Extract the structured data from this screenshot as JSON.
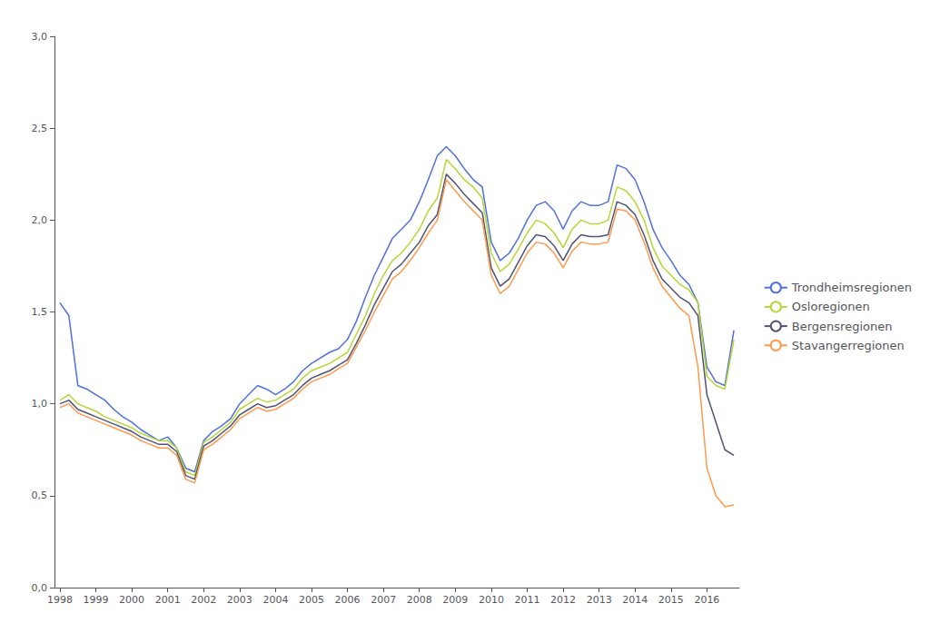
{
  "chart_data": {
    "type": "line",
    "x": [
      1998,
      1998.25,
      1998.5,
      1998.75,
      1999,
      1999.25,
      1999.5,
      1999.75,
      2000,
      2000.25,
      2000.5,
      2000.75,
      2001,
      2001.25,
      2001.5,
      2001.75,
      2002,
      2002.25,
      2002.5,
      2002.75,
      2003,
      2003.25,
      2003.5,
      2003.75,
      2004,
      2004.25,
      2004.5,
      2004.75,
      2005,
      2005.25,
      2005.5,
      2005.75,
      2006,
      2006.25,
      2006.5,
      2006.75,
      2007,
      2007.25,
      2007.5,
      2007.75,
      2008,
      2008.25,
      2008.5,
      2008.75,
      2009,
      2009.25,
      2009.5,
      2009.75,
      2010,
      2010.25,
      2010.5,
      2010.75,
      2011,
      2011.25,
      2011.5,
      2011.75,
      2012,
      2012.25,
      2012.5,
      2012.75,
      2013,
      2013.25,
      2013.5,
      2013.75,
      2014,
      2014.25,
      2014.5,
      2014.75,
      2015,
      2015.25,
      2015.5,
      2015.75,
      2016,
      2016.25,
      2016.5,
      2016.75
    ],
    "series": [
      {
        "name": "Trondheimsregionen",
        "values": [
          1.55,
          1.48,
          1.1,
          1.08,
          1.05,
          1.02,
          0.97,
          0.93,
          0.9,
          0.86,
          0.83,
          0.8,
          0.82,
          0.76,
          0.65,
          0.63,
          0.8,
          0.85,
          0.88,
          0.92,
          1.0,
          1.05,
          1.1,
          1.08,
          1.05,
          1.08,
          1.12,
          1.18,
          1.22,
          1.25,
          1.28,
          1.3,
          1.35,
          1.45,
          1.58,
          1.7,
          1.8,
          1.9,
          1.95,
          2.0,
          2.1,
          2.22,
          2.35,
          2.4,
          2.35,
          2.28,
          2.22,
          2.18,
          1.88,
          1.78,
          1.82,
          1.9,
          2.0,
          2.08,
          2.1,
          2.05,
          1.95,
          2.05,
          2.1,
          2.08,
          2.08,
          2.1,
          2.3,
          2.28,
          2.22,
          2.1,
          1.95,
          1.85,
          1.78,
          1.7,
          1.65,
          1.55,
          1.2,
          1.12,
          1.1,
          1.4
        ]
      },
      {
        "name": "Osloregionen",
        "values": [
          1.02,
          1.05,
          1.0,
          0.98,
          0.96,
          0.93,
          0.91,
          0.89,
          0.87,
          0.84,
          0.82,
          0.8,
          0.8,
          0.76,
          0.63,
          0.61,
          0.79,
          0.82,
          0.86,
          0.9,
          0.97,
          1.0,
          1.03,
          1.01,
          1.02,
          1.05,
          1.08,
          1.14,
          1.18,
          1.2,
          1.22,
          1.25,
          1.28,
          1.38,
          1.48,
          1.6,
          1.7,
          1.78,
          1.82,
          1.88,
          1.95,
          2.05,
          2.12,
          2.33,
          2.28,
          2.22,
          2.18,
          2.12,
          1.82,
          1.72,
          1.76,
          1.84,
          1.93,
          2.0,
          1.98,
          1.93,
          1.85,
          1.95,
          2.0,
          1.98,
          1.98,
          2.0,
          2.18,
          2.16,
          2.1,
          2.0,
          1.85,
          1.75,
          1.7,
          1.65,
          1.62,
          1.55,
          1.15,
          1.1,
          1.08,
          1.35
        ]
      },
      {
        "name": "Bergensregionen",
        "values": [
          1.0,
          1.02,
          0.97,
          0.95,
          0.93,
          0.91,
          0.89,
          0.87,
          0.85,
          0.82,
          0.8,
          0.78,
          0.78,
          0.74,
          0.61,
          0.59,
          0.77,
          0.8,
          0.84,
          0.88,
          0.94,
          0.97,
          1.0,
          0.98,
          0.99,
          1.02,
          1.05,
          1.1,
          1.14,
          1.16,
          1.18,
          1.21,
          1.24,
          1.33,
          1.43,
          1.54,
          1.63,
          1.72,
          1.76,
          1.82,
          1.88,
          1.97,
          2.03,
          2.25,
          2.2,
          2.14,
          2.09,
          2.04,
          1.74,
          1.64,
          1.68,
          1.77,
          1.86,
          1.92,
          1.91,
          1.86,
          1.78,
          1.87,
          1.92,
          1.91,
          1.91,
          1.92,
          2.1,
          2.08,
          2.03,
          1.92,
          1.78,
          1.68,
          1.63,
          1.58,
          1.55,
          1.48,
          1.05,
          0.9,
          0.75,
          0.72
        ]
      },
      {
        "name": "Stavangerregionen",
        "values": [
          0.98,
          1.0,
          0.95,
          0.93,
          0.91,
          0.89,
          0.87,
          0.85,
          0.83,
          0.8,
          0.78,
          0.76,
          0.76,
          0.72,
          0.59,
          0.57,
          0.75,
          0.78,
          0.82,
          0.86,
          0.92,
          0.95,
          0.98,
          0.96,
          0.97,
          1.0,
          1.03,
          1.08,
          1.12,
          1.14,
          1.16,
          1.19,
          1.22,
          1.31,
          1.4,
          1.5,
          1.59,
          1.68,
          1.72,
          1.78,
          1.85,
          1.93,
          2.0,
          2.22,
          2.16,
          2.1,
          2.05,
          2.0,
          1.7,
          1.6,
          1.64,
          1.73,
          1.82,
          1.88,
          1.87,
          1.82,
          1.74,
          1.83,
          1.88,
          1.87,
          1.87,
          1.88,
          2.06,
          2.05,
          2.0,
          1.88,
          1.74,
          1.64,
          1.58,
          1.52,
          1.48,
          1.2,
          0.65,
          0.5,
          0.44,
          0.45
        ]
      }
    ],
    "xlim": [
      1997.85,
      2016.9
    ],
    "xticks": [
      1998,
      1999,
      2000,
      2001,
      2002,
      2003,
      2004,
      2005,
      2006,
      2007,
      2008,
      2009,
      2010,
      2011,
      2012,
      2013,
      2014,
      2015,
      2016
    ],
    "ylim": [
      0.0,
      3.0
    ],
    "yticks": [
      {
        "value": 0.0,
        "label": "0,0"
      },
      {
        "value": 0.5,
        "label": "0,5"
      },
      {
        "value": 1.0,
        "label": "1,0"
      },
      {
        "value": 1.5,
        "label": "1,5"
      },
      {
        "value": 2.0,
        "label": "2,0"
      },
      {
        "value": 2.5,
        "label": "2,5"
      },
      {
        "value": 3.0,
        "label": "3,0"
      }
    ],
    "grid": false,
    "legend": "right"
  }
}
